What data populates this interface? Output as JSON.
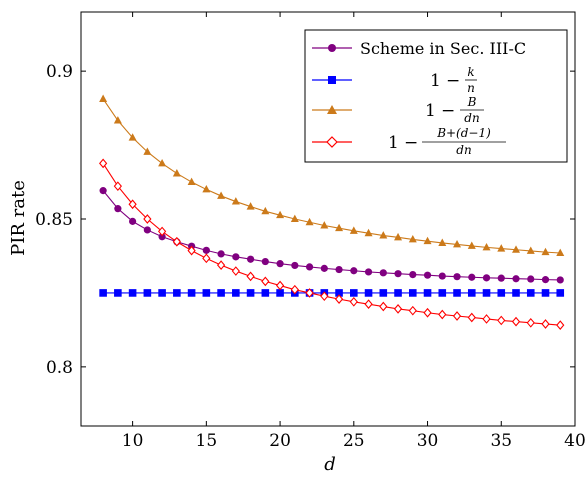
{
  "chart_data": {
    "type": "line",
    "title": "",
    "xlabel": "d",
    "ylabel": "PIR rate",
    "xlim": [
      6.5,
      40
    ],
    "ylim": [
      0.78,
      0.92
    ],
    "xticks": [
      10,
      15,
      20,
      25,
      30,
      35,
      40
    ],
    "xtick_labels": [
      "10",
      "15",
      "20",
      "25",
      "30",
      "35",
      "40"
    ],
    "yticks": [
      0.8,
      0.85,
      0.9
    ],
    "ytick_labels": [
      "0.8",
      "0.85",
      "0.9"
    ],
    "grid": false,
    "legend_position": "top-right",
    "x": [
      8,
      9,
      10,
      11,
      12,
      13,
      14,
      15,
      16,
      17,
      18,
      19,
      20,
      21,
      22,
      23,
      24,
      25,
      26,
      27,
      28,
      29,
      30,
      31,
      32,
      33,
      34,
      35,
      36,
      37,
      38,
      39
    ],
    "series": [
      {
        "name": "Scheme in Sec. III-C",
        "color": "#800080",
        "marker": "circle",
        "values": [
          0.8596,
          0.8535,
          0.8492,
          0.8463,
          0.844,
          0.8423,
          0.8408,
          0.8394,
          0.8382,
          0.8372,
          0.8364,
          0.8356,
          0.8349,
          0.8343,
          0.8338,
          0.8333,
          0.8329,
          0.8325,
          0.8321,
          0.8318,
          0.8315,
          0.8312,
          0.831,
          0.8307,
          0.8305,
          0.8303,
          0.8301,
          0.83,
          0.8298,
          0.8297,
          0.8295,
          0.8294
        ]
      },
      {
        "name": "1 − k/n",
        "color": "#0000ff",
        "marker": "square",
        "values": [
          0.825,
          0.825,
          0.825,
          0.825,
          0.825,
          0.825,
          0.825,
          0.825,
          0.825,
          0.825,
          0.825,
          0.825,
          0.825,
          0.825,
          0.825,
          0.825,
          0.825,
          0.825,
          0.825,
          0.825,
          0.825,
          0.825,
          0.825,
          0.825,
          0.825,
          0.825,
          0.825,
          0.825,
          0.825,
          0.825,
          0.825,
          0.825
        ]
      },
      {
        "name": "1 − B/(dn)",
        "color": "#cc7a1a",
        "marker": "triangle",
        "values": [
          0.8906,
          0.8833,
          0.8775,
          0.8727,
          0.8688,
          0.8654,
          0.8625,
          0.86,
          0.8578,
          0.8559,
          0.8542,
          0.8526,
          0.8513,
          0.85,
          0.8489,
          0.8478,
          0.8469,
          0.846,
          0.8452,
          0.8444,
          0.8438,
          0.8431,
          0.8425,
          0.8419,
          0.8414,
          0.8409,
          0.8404,
          0.84,
          0.8396,
          0.8392,
          0.8388,
          0.8385
        ]
      },
      {
        "name": "1 − (B+(d−1))/(dn)",
        "color": "#ff0000",
        "marker": "diamond",
        "values": [
          0.8688,
          0.8611,
          0.855,
          0.85,
          0.8458,
          0.8423,
          0.8393,
          0.8367,
          0.8344,
          0.8324,
          0.8306,
          0.8289,
          0.8275,
          0.8261,
          0.825,
          0.8239,
          0.8229,
          0.822,
          0.8212,
          0.8204,
          0.8196,
          0.819,
          0.8183,
          0.8177,
          0.8172,
          0.8167,
          0.8162,
          0.8157,
          0.8153,
          0.8149,
          0.8145,
          0.8141
        ]
      }
    ]
  },
  "legend": {
    "scheme_label": "Scheme in Sec. III-C",
    "one": "1",
    "minus": "−",
    "k": "k",
    "n": "n",
    "B": "B",
    "dn": "dn",
    "bd1": "B+(d−1)"
  }
}
